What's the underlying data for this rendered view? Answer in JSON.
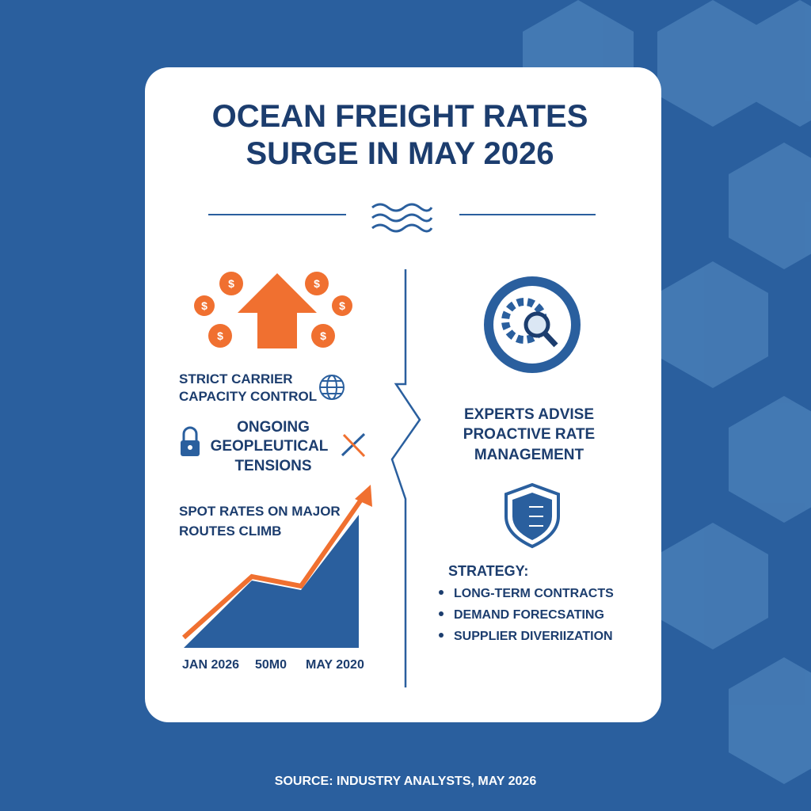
{
  "header": {
    "title": [
      "OCEAN FREIGHT RATES",
      "SURGE IN MAY 2026"
    ]
  },
  "left": {
    "drivers": [
      {
        "lines": [
          "STRICT CARRIER",
          "CAPACITY CONTROL"
        ]
      },
      {
        "lines": [
          "ONGOING",
          "GEOPLEUTICAL",
          "TENSIONS"
        ]
      }
    ],
    "trend": {
      "lines": [
        "SPOT RATES ON MAJOR",
        "ROUTES CLIMB"
      ],
      "axis_labels": [
        "JAN 2026",
        "50M0",
        "MAY 2020"
      ]
    }
  },
  "right": {
    "advice": {
      "lines": [
        "EXPERTS ADVISE",
        "PROACTIVE RATE",
        "MANAGEMENT"
      ]
    },
    "strategy": {
      "heading": "STRATEGY:",
      "items": [
        "LONG-TERM CONTRACTS",
        "DEMAND FORECSATING",
        "SUPPLIER DIVERIIZATION"
      ]
    }
  },
  "footer": {
    "source": "SOURCE: INDUSTRY ANALYSTS, MAY 2026"
  }
}
